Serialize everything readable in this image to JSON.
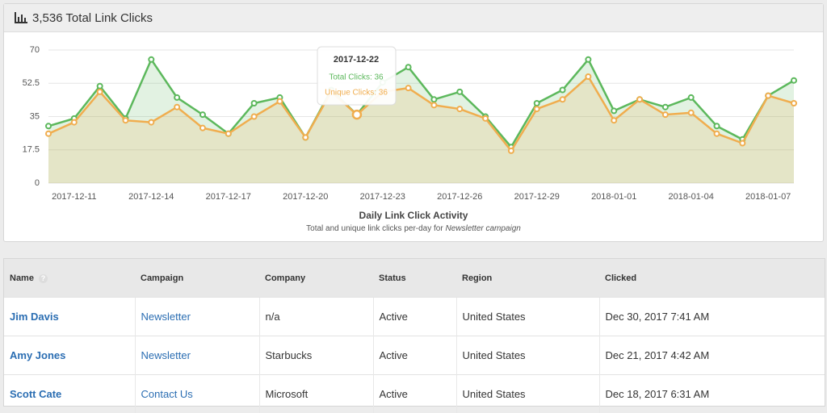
{
  "header": {
    "title": "3,536 Total Link Clicks"
  },
  "chart_data": {
    "type": "line",
    "title": "Daily Link Click Activity",
    "subtitle": "Total and unique link clicks per-day for",
    "subtitle_em": "Newsletter campaign",
    "categories": [
      null,
      "2017-12-11",
      null,
      null,
      "2017-12-14",
      null,
      null,
      "2017-12-17",
      null,
      null,
      "2017-12-20",
      null,
      null,
      "2017-12-23",
      null,
      null,
      "2017-12-26",
      null,
      null,
      "2017-12-29",
      null,
      null,
      "2018-01-01",
      null,
      null,
      "2018-01-04",
      null,
      null,
      "2018-01-07",
      null
    ],
    "series": [
      {
        "name": "Total Clicks",
        "color": "#5cb85c",
        "values": [
          30,
          34,
          51,
          34,
          65,
          45,
          36,
          26,
          42,
          45,
          24,
          49,
          36,
          53,
          61,
          44,
          48,
          35,
          19,
          42,
          49,
          65,
          38,
          44,
          40,
          45,
          30,
          23,
          46,
          54
        ]
      },
      {
        "name": "Unique Clicks",
        "color": "#f0ad4e",
        "values": [
          26,
          32,
          48,
          33,
          32,
          40,
          29,
          26,
          35,
          43,
          24,
          48,
          36,
          48,
          50,
          41,
          39,
          34,
          17,
          39,
          44,
          56,
          33,
          44,
          36,
          37,
          26,
          21,
          46,
          42
        ]
      }
    ],
    "ylim": [
      0,
      70
    ],
    "yticks": [
      0,
      17.5,
      35,
      52.5,
      70
    ],
    "grid": true,
    "tooltip": {
      "index": 12,
      "title": "2017-12-22",
      "lines": [
        "Total Clicks: 36",
        "Unique Clicks: 36"
      ]
    }
  },
  "table": {
    "columns": [
      "Name",
      "Campaign",
      "Company",
      "Status",
      "Region",
      "Clicked"
    ],
    "rows": [
      [
        "Jim Davis",
        "Newsletter",
        "n/a",
        "Active",
        "United States",
        "Dec 30, 2017 7:41 AM"
      ],
      [
        "Amy Jones",
        "Newsletter",
        "Starbucks",
        "Active",
        "United States",
        "Dec 21, 2017 4:42 AM"
      ],
      [
        "Scott Cate",
        "Contact Us",
        "Microsoft",
        "Active",
        "United States",
        "Dec 18, 2017 6:31 AM"
      ]
    ]
  }
}
